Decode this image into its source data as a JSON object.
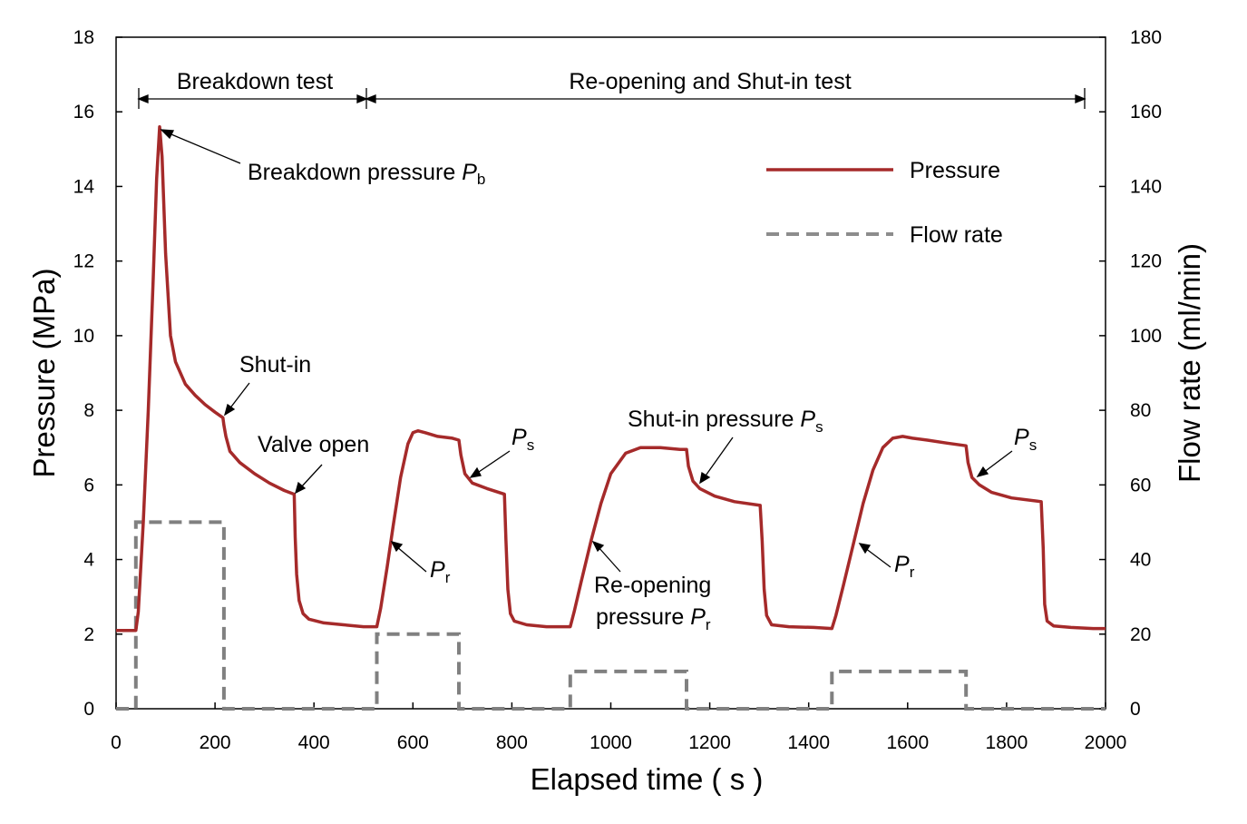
{
  "chart_data": {
    "type": "line",
    "title": "",
    "xlabel": "Elapsed time ( s )",
    "ylabel": "Pressure (MPa)",
    "y2label": "Flow rate (ml/min)",
    "xlim": [
      0,
      2000
    ],
    "ylim": [
      0,
      18
    ],
    "y2lim": [
      0,
      180
    ],
    "grid": false,
    "legend_position": "top-right",
    "xticks": [
      "0",
      "200",
      "400",
      "600",
      "800",
      "1000",
      "1200",
      "1400",
      "1600",
      "1800",
      "2000"
    ],
    "yticks": [
      "0",
      "2",
      "4",
      "6",
      "8",
      "10",
      "12",
      "14",
      "16",
      "18"
    ],
    "y2ticks": [
      "0",
      "20",
      "40",
      "60",
      "80",
      "100",
      "120",
      "140",
      "160",
      "180"
    ],
    "series": [
      {
        "name": "Pressure",
        "axis": "left",
        "style": "solid",
        "color": "#a52a2a",
        "x": [
          0,
          40,
          45,
          55,
          65,
          75,
          82,
          88,
          93,
          100,
          110,
          120,
          140,
          160,
          180,
          200,
          216,
          218,
          222,
          230,
          250,
          280,
          310,
          340,
          360,
          362,
          365,
          370,
          378,
          390,
          420,
          460,
          500,
          527,
          535,
          548,
          560,
          575,
          590,
          600,
          610,
          625,
          650,
          680,
          693,
          697,
          705,
          720,
          750,
          785,
          788,
          792,
          797,
          805,
          830,
          870,
          918,
          926,
          940,
          960,
          980,
          1000,
          1030,
          1060,
          1100,
          1140,
          1153,
          1157,
          1166,
          1180,
          1210,
          1250,
          1302,
          1306,
          1310,
          1315,
          1325,
          1360,
          1410,
          1447,
          1455,
          1470,
          1490,
          1510,
          1530,
          1550,
          1570,
          1590,
          1610,
          1640,
          1680,
          1718,
          1722,
          1730,
          1745,
          1770,
          1810,
          1870,
          1874,
          1877,
          1882,
          1895,
          1930,
          1975,
          2000
        ],
        "y": [
          2.1,
          2.1,
          2.6,
          5.0,
          8.0,
          11.5,
          14.2,
          15.6,
          14.8,
          12.2,
          10.0,
          9.3,
          8.7,
          8.4,
          8.15,
          7.95,
          7.8,
          7.6,
          7.3,
          6.9,
          6.6,
          6.3,
          6.05,
          5.85,
          5.75,
          4.6,
          3.6,
          2.9,
          2.55,
          2.4,
          2.3,
          2.25,
          2.2,
          2.2,
          2.7,
          3.8,
          4.9,
          6.2,
          7.1,
          7.4,
          7.45,
          7.4,
          7.3,
          7.25,
          7.2,
          6.8,
          6.3,
          6.05,
          5.9,
          5.75,
          4.5,
          3.2,
          2.55,
          2.35,
          2.25,
          2.2,
          2.2,
          2.6,
          3.4,
          4.5,
          5.5,
          6.3,
          6.85,
          7.0,
          7.0,
          6.95,
          6.95,
          6.5,
          6.1,
          5.9,
          5.7,
          5.55,
          5.45,
          4.5,
          3.2,
          2.5,
          2.25,
          2.2,
          2.18,
          2.15,
          2.5,
          3.3,
          4.4,
          5.5,
          6.4,
          7.0,
          7.25,
          7.3,
          7.25,
          7.2,
          7.12,
          7.05,
          6.6,
          6.2,
          6.0,
          5.8,
          5.65,
          5.55,
          4.3,
          2.8,
          2.35,
          2.22,
          2.18,
          2.15,
          2.15
        ]
      },
      {
        "name": "Flow rate",
        "axis": "right",
        "style": "dashed",
        "color": "#808080",
        "x": [
          0,
          40,
          40,
          218,
          218,
          527,
          527,
          693,
          693,
          918,
          918,
          1153,
          1153,
          1447,
          1447,
          1718,
          1718,
          2000
        ],
        "y": [
          0,
          0,
          50,
          50,
          0,
          0,
          20,
          20,
          0,
          0,
          10,
          10,
          0,
          0,
          10,
          10,
          0,
          0
        ]
      }
    ],
    "annotations": {
      "breakdown_test": "Breakdown test",
      "reopening_test": "Re-opening and Shut-in test",
      "breakdown_pressure": "Breakdown pressure ",
      "pb_symbol": "P",
      "pb_sub": "b",
      "shut_in": "Shut-in",
      "valve_open": "Valve open",
      "ps_symbol": "P",
      "ps_sub": "s",
      "pr_symbol": "P",
      "pr_sub": "r",
      "shut_in_pressure": "Shut-in pressure ",
      "reopening_line1": "Re-opening",
      "reopening_line2": "pressure "
    }
  }
}
